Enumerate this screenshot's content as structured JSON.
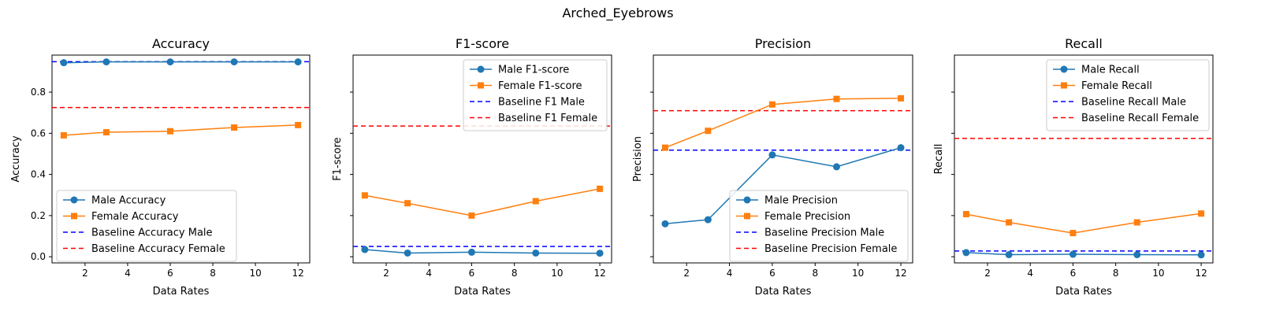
{
  "suptitle": "Arched_Eyebrows",
  "chart_data": [
    {
      "type": "line",
      "title": "Accuracy",
      "xlabel": "Data Rates",
      "ylabel": "Accuracy",
      "xlim": [
        0.45,
        12.55
      ],
      "ylim": [
        -0.03,
        0.98
      ],
      "xticks": [
        2,
        4,
        6,
        8,
        10,
        12
      ],
      "yticks": [
        0.0,
        0.2,
        0.4,
        0.6,
        0.8
      ],
      "ytick_labels": [
        "0.0",
        "0.2",
        "0.4",
        "0.6",
        "0.8"
      ],
      "x": [
        1,
        3,
        6,
        9,
        12
      ],
      "series": [
        {
          "name": "Male Accuracy",
          "values": [
            0.943,
            0.947,
            0.947,
            0.947,
            0.947
          ],
          "color": "#1f77b4",
          "marker": "circle"
        },
        {
          "name": "Female Accuracy",
          "values": [
            0.59,
            0.605,
            0.61,
            0.628,
            0.64
          ],
          "color": "#ff7f0e",
          "marker": "square"
        }
      ],
      "baselines": [
        {
          "name": "Baseline Accuracy Male",
          "value": 0.948,
          "color": "#0000ff"
        },
        {
          "name": "Baseline Accuracy Female",
          "value": 0.725,
          "color": "#ff0000"
        }
      ],
      "legend_placement": "lower-left"
    },
    {
      "type": "line",
      "title": "F1-score",
      "xlabel": "Data Rates",
      "ylabel": "F1-score",
      "xlim": [
        0.45,
        12.55
      ],
      "ylim": [
        -0.03,
        0.98
      ],
      "xticks": [
        2,
        4,
        6,
        8,
        10,
        12
      ],
      "yticks": [
        0.0,
        0.2,
        0.4,
        0.6,
        0.8
      ],
      "ytick_labels": [
        "",
        "",
        "",
        "",
        ""
      ],
      "x": [
        1,
        3,
        6,
        9,
        12
      ],
      "series": [
        {
          "name": "Male F1-score",
          "values": [
            0.035,
            0.018,
            0.022,
            0.018,
            0.017
          ],
          "color": "#1f77b4",
          "marker": "circle"
        },
        {
          "name": "Female F1-score",
          "values": [
            0.298,
            0.26,
            0.2,
            0.27,
            0.33
          ],
          "color": "#ff7f0e",
          "marker": "square"
        }
      ],
      "baselines": [
        {
          "name": "Baseline F1 Male",
          "value": 0.05,
          "color": "#0000ff"
        },
        {
          "name": "Baseline F1 Female",
          "value": 0.635,
          "color": "#ff0000"
        }
      ],
      "legend_placement": "upper-right"
    },
    {
      "type": "line",
      "title": "Precision",
      "xlabel": "Data Rates",
      "ylabel": "Precision",
      "xlim": [
        0.45,
        12.55
      ],
      "ylim": [
        -0.03,
        0.98
      ],
      "xticks": [
        2,
        4,
        6,
        8,
        10,
        12
      ],
      "yticks": [
        0.0,
        0.2,
        0.4,
        0.6,
        0.8
      ],
      "ytick_labels": [
        "",
        "",
        "",
        "",
        ""
      ],
      "x": [
        1,
        3,
        6,
        9,
        12
      ],
      "series": [
        {
          "name": "Male Precision",
          "values": [
            0.16,
            0.18,
            0.495,
            0.437,
            0.53
          ],
          "color": "#1f77b4",
          "marker": "circle"
        },
        {
          "name": "Female Precision",
          "values": [
            0.53,
            0.612,
            0.74,
            0.767,
            0.77
          ],
          "color": "#ff7f0e",
          "marker": "square"
        }
      ],
      "baselines": [
        {
          "name": "Baseline Precision Male",
          "value": 0.518,
          "color": "#0000ff"
        },
        {
          "name": "Baseline Precision Female",
          "value": 0.71,
          "color": "#ff0000"
        }
      ],
      "legend_placement": "lower-right"
    },
    {
      "type": "line",
      "title": "Recall",
      "xlabel": "Data Rates",
      "ylabel": "Recall",
      "xlim": [
        0.45,
        12.55
      ],
      "ylim": [
        -0.03,
        0.98
      ],
      "xticks": [
        2,
        4,
        6,
        8,
        10,
        12
      ],
      "yticks": [
        0.0,
        0.2,
        0.4,
        0.6,
        0.8
      ],
      "ytick_labels": [
        "",
        "",
        "",
        "",
        ""
      ],
      "x": [
        1,
        3,
        6,
        9,
        12
      ],
      "series": [
        {
          "name": "Male Recall",
          "values": [
            0.02,
            0.01,
            0.012,
            0.01,
            0.009
          ],
          "color": "#1f77b4",
          "marker": "circle"
        },
        {
          "name": "Female Recall",
          "values": [
            0.207,
            0.167,
            0.115,
            0.167,
            0.21
          ],
          "color": "#ff7f0e",
          "marker": "square"
        }
      ],
      "baselines": [
        {
          "name": "Baseline Recall Male",
          "value": 0.028,
          "color": "#0000ff"
        },
        {
          "name": "Baseline Recall Female",
          "value": 0.575,
          "color": "#ff0000"
        }
      ],
      "legend_placement": "upper-right"
    }
  ]
}
